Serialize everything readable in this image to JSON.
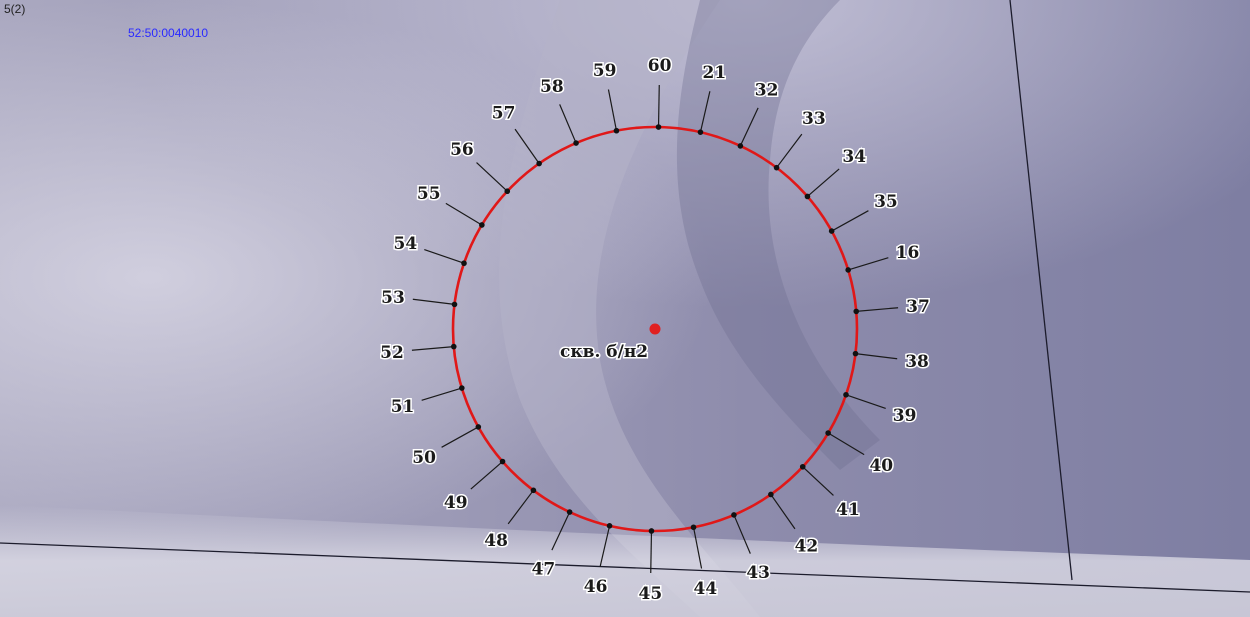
{
  "map": {
    "corner_text": "5(2)",
    "parcel_number": "52:50:0040010",
    "well": {
      "label": "скв. б/н2",
      "color": "#e02020"
    },
    "circle_color": "#e01818",
    "point_labels": [
      "21",
      "32",
      "33",
      "34",
      "35",
      "16",
      "37",
      "38",
      "39",
      "40",
      "41",
      "42",
      "43",
      "44",
      "45",
      "46",
      "47",
      "48",
      "49",
      "50",
      "51",
      "52",
      "53",
      "54",
      "55",
      "56",
      "57",
      "58",
      "59",
      "60"
    ]
  }
}
